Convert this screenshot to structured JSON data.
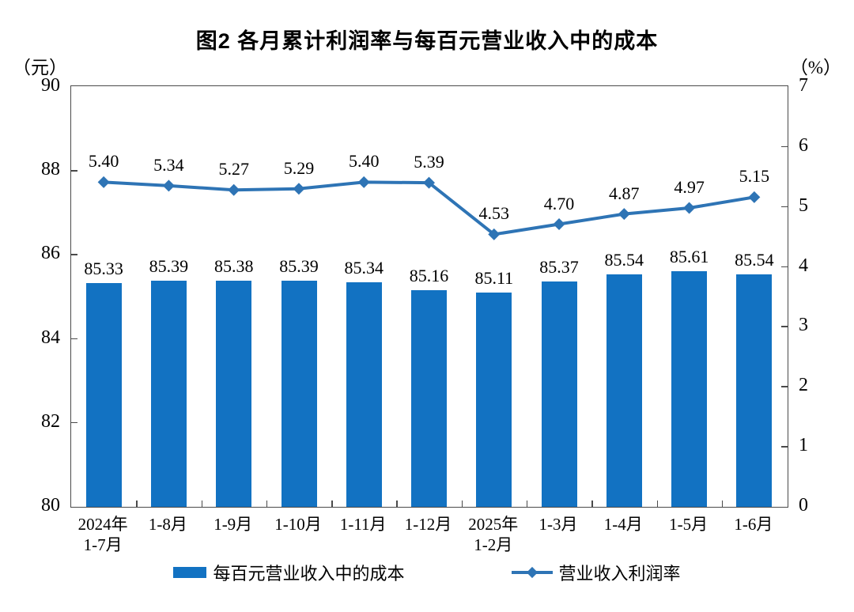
{
  "title": "图2 各月累计利润率与每百元营业收入中的成本",
  "left_axis": {
    "unit": "（元）",
    "min": 80,
    "max": 90,
    "tick_step": 2,
    "ticks": [
      90,
      88,
      86,
      84,
      82,
      80
    ]
  },
  "right_axis": {
    "unit": "（%）",
    "min": 0,
    "max": 7,
    "tick_step": 1,
    "ticks": [
      7,
      6,
      5,
      4,
      3,
      2,
      1,
      0
    ]
  },
  "colors": {
    "bar": "#1272C2",
    "line": "#2E74B5",
    "axis": "#4a4a4a",
    "text": "#000000"
  },
  "legend": {
    "position": "bottom-center"
  },
  "chart_data": {
    "type": "bar",
    "subtype": "bar+line combo, dual axis",
    "grid": false,
    "categories": [
      "2024年\n1-7月",
      "1-8月",
      "1-9月",
      "1-10月",
      "1-11月",
      "1-12月",
      "2025年\n1-2月",
      "1-3月",
      "1-4月",
      "1-5月",
      "1-6月"
    ],
    "series": [
      {
        "name": "每百元营业收入中的成本",
        "type": "bar",
        "axis": "left",
        "ylim": [
          80,
          90
        ],
        "color": "#1272C2",
        "values": [
          85.33,
          85.39,
          85.38,
          85.39,
          85.34,
          85.16,
          85.11,
          85.37,
          85.54,
          85.61,
          85.54
        ]
      },
      {
        "name": "营业收入利润率",
        "type": "line",
        "axis": "right",
        "ylim": [
          0,
          7
        ],
        "color": "#2E74B5",
        "marker": "diamond",
        "values": [
          5.4,
          5.34,
          5.27,
          5.29,
          5.4,
          5.39,
          4.53,
          4.7,
          4.87,
          4.97,
          5.15
        ]
      }
    ],
    "title": "图2 各月累计利润率与每百元营业收入中的成本",
    "xlabel": "",
    "ylabel_left": "（元）",
    "ylabel_right": "（%）"
  }
}
